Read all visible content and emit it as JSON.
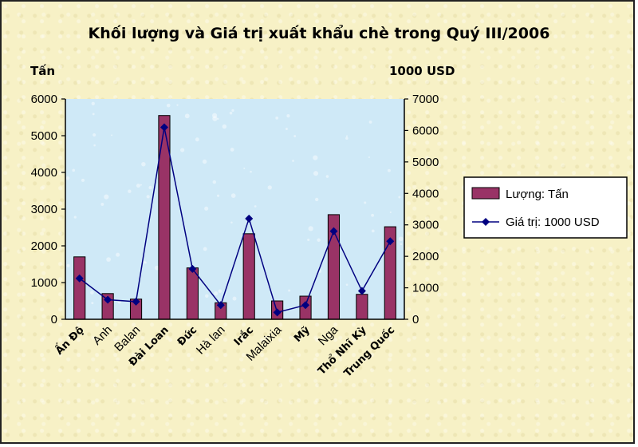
{
  "chart_data": {
    "type": "bar",
    "title": "Khối lượng và Giá trị xuất khẩu chè trong Quý III/2006",
    "ylabel": "Tấn",
    "y2label": "1000 USD",
    "ylim": [
      0,
      6000
    ],
    "y2lim": [
      0,
      7000
    ],
    "yticks": [
      0,
      1000,
      2000,
      3000,
      4000,
      5000,
      6000
    ],
    "y2ticks": [
      0,
      1000,
      2000,
      3000,
      4000,
      5000,
      6000,
      7000
    ],
    "categories": [
      "Ấn Độ",
      "Anh",
      "Balan",
      "Đài Loan",
      "Đức",
      "Hà lan",
      "Irắc",
      "Malaixia",
      "Mỹ",
      "Nga",
      "Thổ Nhĩ Kỳ",
      "Trung Quốc"
    ],
    "category_bold": [
      true,
      false,
      false,
      true,
      true,
      false,
      true,
      false,
      true,
      false,
      true,
      true
    ],
    "series": [
      {
        "name": "Lượng: Tấn",
        "type": "bar",
        "axis": "left",
        "color": "#993366",
        "values": [
          1700,
          700,
          550,
          5550,
          1400,
          450,
          2330,
          500,
          630,
          2850,
          680,
          2520
        ]
      },
      {
        "name": "Giá trị: 1000 USD",
        "type": "line",
        "axis": "right",
        "color": "#000080",
        "values": [
          1300,
          620,
          560,
          6100,
          1600,
          450,
          3200,
          220,
          450,
          2800,
          900,
          2480
        ]
      }
    ],
    "legend": "right",
    "plot_background": "#cfe9f7"
  }
}
